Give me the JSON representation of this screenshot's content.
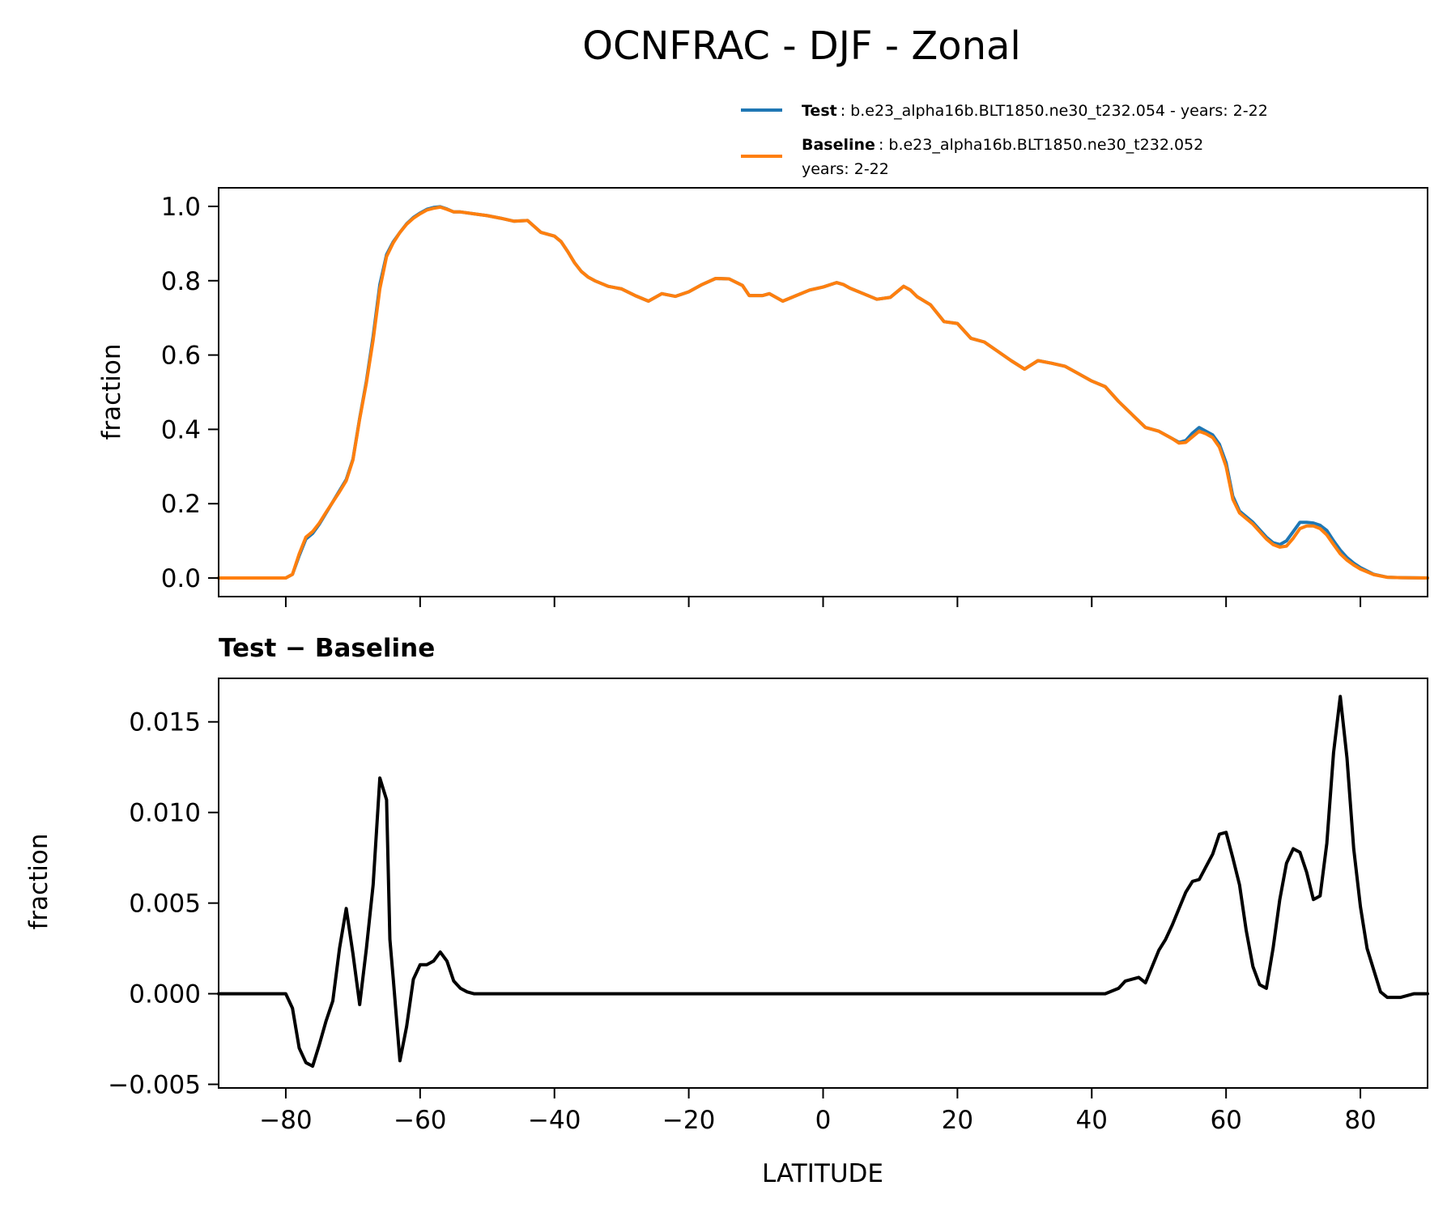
{
  "chart_data": [
    {
      "type": "line",
      "title": "OCNFRAC - DJF - Zonal",
      "xlabel": "",
      "ylabel": "fraction",
      "xlim": [
        -90,
        90
      ],
      "ylim": [
        -0.05,
        1.05
      ],
      "grid": false,
      "legend_position": "above-right",
      "x_ticks": [
        -80,
        -60,
        -40,
        -20,
        0,
        20,
        40,
        60,
        80
      ],
      "y_ticks": [
        0.0,
        0.2,
        0.4,
        0.6,
        0.8,
        1.0
      ],
      "y_tick_labels": [
        "0.0",
        "0.2",
        "0.4",
        "0.6",
        "0.8",
        "1.0"
      ],
      "legend": [
        {
          "bold": "Test",
          "text": ": b.e23_alpha16b.BLT1850.ne30_t232.054 - years: 2-22",
          "text2": ""
        },
        {
          "bold": "Baseline",
          "text": ": b.e23_alpha16b.BLT1850.ne30_t232.052",
          "text2": "years: 2-22"
        }
      ],
      "series": [
        {
          "name": "Test",
          "color": "#1f77b4",
          "x": [
            -90,
            -84,
            -80,
            -79,
            -78,
            -77,
            -76,
            -75,
            -74,
            -72,
            -71,
            -70,
            -69,
            -68,
            -67,
            -66,
            -65,
            -64,
            -63,
            -62,
            -61,
            -60,
            -59,
            -58,
            -57,
            -56,
            -55,
            -54,
            -52,
            -50,
            -48,
            -46,
            -44,
            -42,
            -40,
            -39,
            -38,
            -37,
            -36,
            -35,
            -34,
            -32,
            -30,
            -28,
            -26,
            -24,
            -22,
            -20,
            -18,
            -16,
            -14,
            -12,
            -11,
            -10,
            -9,
            -8,
            -6,
            -4,
            -2,
            0,
            2,
            3,
            4,
            6,
            8,
            10,
            12,
            13,
            14,
            16,
            18,
            20,
            22,
            24,
            26,
            28,
            30,
            32,
            34,
            36,
            38,
            40,
            42,
            44,
            46,
            48,
            50,
            52,
            53,
            54,
            55,
            56,
            57,
            58,
            59,
            60,
            61,
            62,
            64,
            66,
            67,
            68,
            69,
            70,
            71,
            72,
            73,
            74,
            75,
            76,
            77,
            78,
            79,
            80,
            82,
            84,
            86,
            90
          ],
          "y": [
            0.0,
            0.0,
            0.0,
            0.01,
            0.06,
            0.105,
            0.12,
            0.145,
            0.175,
            0.235,
            0.265,
            0.32,
            0.43,
            0.53,
            0.65,
            0.79,
            0.87,
            0.905,
            0.93,
            0.953,
            0.97,
            0.982,
            0.992,
            0.997,
            0.999,
            0.993,
            0.985,
            0.985,
            0.98,
            0.975,
            0.968,
            0.96,
            0.962,
            0.93,
            0.92,
            0.905,
            0.878,
            0.848,
            0.825,
            0.81,
            0.8,
            0.785,
            0.778,
            0.76,
            0.745,
            0.765,
            0.758,
            0.77,
            0.79,
            0.806,
            0.805,
            0.787,
            0.76,
            0.76,
            0.76,
            0.765,
            0.745,
            0.76,
            0.775,
            0.783,
            0.795,
            0.79,
            0.78,
            0.765,
            0.75,
            0.755,
            0.785,
            0.775,
            0.757,
            0.735,
            0.69,
            0.685,
            0.645,
            0.635,
            0.61,
            0.585,
            0.562,
            0.585,
            0.578,
            0.57,
            0.55,
            0.53,
            0.515,
            0.475,
            0.44,
            0.405,
            0.395,
            0.375,
            0.365,
            0.37,
            0.39,
            0.405,
            0.395,
            0.385,
            0.36,
            0.31,
            0.22,
            0.18,
            0.15,
            0.11,
            0.095,
            0.09,
            0.1,
            0.125,
            0.15,
            0.15,
            0.148,
            0.142,
            0.128,
            0.1,
            0.075,
            0.055,
            0.04,
            0.028,
            0.01,
            0.002,
            0.001,
            0.0
          ]
        },
        {
          "name": "Baseline",
          "color": "#ff7f0e",
          "x": [
            -90,
            -84,
            -80,
            -79,
            -78,
            -77,
            -76,
            -75,
            -74,
            -72,
            -71,
            -70,
            -69,
            -68,
            -67,
            -66,
            -65,
            -64,
            -63,
            -62,
            -61,
            -60,
            -59,
            -58,
            -57,
            -56,
            -55,
            -54,
            -52,
            -50,
            -48,
            -46,
            -44,
            -42,
            -40,
            -39,
            -38,
            -37,
            -36,
            -35,
            -34,
            -32,
            -30,
            -28,
            -26,
            -24,
            -22,
            -20,
            -18,
            -16,
            -14,
            -12,
            -11,
            -10,
            -9,
            -8,
            -6,
            -4,
            -2,
            0,
            2,
            3,
            4,
            6,
            8,
            10,
            12,
            13,
            14,
            16,
            18,
            20,
            22,
            24,
            26,
            28,
            30,
            32,
            34,
            36,
            38,
            40,
            42,
            44,
            46,
            48,
            50,
            52,
            53,
            54,
            55,
            56,
            57,
            58,
            59,
            60,
            61,
            62,
            64,
            66,
            67,
            68,
            69,
            70,
            71,
            72,
            73,
            74,
            75,
            76,
            77,
            78,
            79,
            80,
            82,
            84,
            86,
            90
          ],
          "y": [
            0.0,
            0.0,
            0.0,
            0.01,
            0.065,
            0.11,
            0.125,
            0.148,
            0.177,
            0.232,
            0.262,
            0.318,
            0.428,
            0.525,
            0.64,
            0.778,
            0.865,
            0.902,
            0.93,
            0.952,
            0.968,
            0.98,
            0.99,
            0.995,
            0.998,
            0.992,
            0.985,
            0.985,
            0.98,
            0.975,
            0.968,
            0.96,
            0.962,
            0.93,
            0.92,
            0.905,
            0.878,
            0.848,
            0.825,
            0.81,
            0.8,
            0.785,
            0.778,
            0.76,
            0.745,
            0.765,
            0.758,
            0.77,
            0.79,
            0.806,
            0.805,
            0.787,
            0.76,
            0.76,
            0.76,
            0.765,
            0.745,
            0.76,
            0.775,
            0.783,
            0.795,
            0.79,
            0.78,
            0.765,
            0.75,
            0.755,
            0.785,
            0.775,
            0.757,
            0.735,
            0.69,
            0.685,
            0.645,
            0.635,
            0.61,
            0.585,
            0.562,
            0.585,
            0.578,
            0.57,
            0.55,
            0.53,
            0.515,
            0.475,
            0.44,
            0.405,
            0.395,
            0.375,
            0.363,
            0.365,
            0.38,
            0.395,
            0.388,
            0.378,
            0.352,
            0.3,
            0.212,
            0.175,
            0.145,
            0.105,
            0.09,
            0.083,
            0.086,
            0.107,
            0.133,
            0.14,
            0.14,
            0.133,
            0.116,
            0.09,
            0.065,
            0.048,
            0.035,
            0.024,
            0.009,
            0.002,
            0.001,
            0.0
          ]
        }
      ]
    },
    {
      "type": "line",
      "title": "Test − Baseline",
      "xlabel": "LATITUDE",
      "ylabel": "fraction",
      "xlim": [
        -90,
        90
      ],
      "ylim": [
        -0.0052,
        0.0174
      ],
      "grid": false,
      "x_ticks": [
        -80,
        -60,
        -40,
        -20,
        0,
        20,
        40,
        60,
        80
      ],
      "x_tick_labels": [
        "−80",
        "−60",
        "−40",
        "−20",
        "0",
        "20",
        "40",
        "60",
        "80"
      ],
      "y_ticks": [
        -0.005,
        0.0,
        0.005,
        0.01,
        0.015
      ],
      "y_tick_labels": [
        "−0.005",
        "0.000",
        "0.005",
        "0.010",
        "0.015"
      ],
      "series": [
        {
          "name": "Test − Baseline",
          "color": "#000000",
          "x": [
            -90,
            -80,
            -79,
            -78,
            -77,
            -76,
            -75,
            -74,
            -73,
            -72,
            -71,
            -70,
            -69,
            -68,
            -67,
            -66,
            -65,
            -64.5,
            -64,
            -63,
            -62,
            -61,
            -60,
            -59,
            -58,
            -57,
            -56,
            -55,
            -54,
            -53,
            -52,
            -50,
            38,
            40,
            42,
            44,
            45,
            46,
            47,
            48,
            49,
            50,
            51,
            52,
            53,
            54,
            55,
            56,
            57,
            58,
            59,
            60,
            61,
            62,
            63,
            64,
            65,
            66,
            67,
            68,
            69,
            70,
            71,
            72,
            73,
            74,
            75,
            76,
            77,
            78,
            79,
            80,
            81,
            82,
            83,
            84,
            86,
            88,
            90
          ],
          "y": [
            0.0,
            0.0,
            -0.0008,
            -0.003,
            -0.0038,
            -0.004,
            -0.0028,
            -0.0015,
            -0.0004,
            0.0025,
            0.0047,
            0.0022,
            -0.0006,
            0.0025,
            0.006,
            0.0119,
            0.0107,
            0.003,
            0.0008,
            -0.0037,
            -0.0018,
            0.0008,
            0.0016,
            0.0016,
            0.0018,
            0.0023,
            0.0018,
            0.0007,
            0.0003,
            0.0001,
            0.0,
            0.0,
            0.0,
            0.0,
            0.0,
            0.0003,
            0.0007,
            0.0008,
            0.0009,
            0.0006,
            0.0015,
            0.0024,
            0.003,
            0.0038,
            0.0047,
            0.0056,
            0.0062,
            0.0063,
            0.007,
            0.0077,
            0.0088,
            0.0089,
            0.0075,
            0.006,
            0.0035,
            0.0015,
            0.0005,
            0.0003,
            0.0025,
            0.0052,
            0.0072,
            0.008,
            0.0078,
            0.0067,
            0.0052,
            0.0054,
            0.0083,
            0.0133,
            0.0164,
            0.013,
            0.008,
            0.0048,
            0.0025,
            0.0013,
            0.0001,
            -0.0002,
            -0.0002,
            0.0,
            0.0
          ]
        }
      ]
    }
  ]
}
